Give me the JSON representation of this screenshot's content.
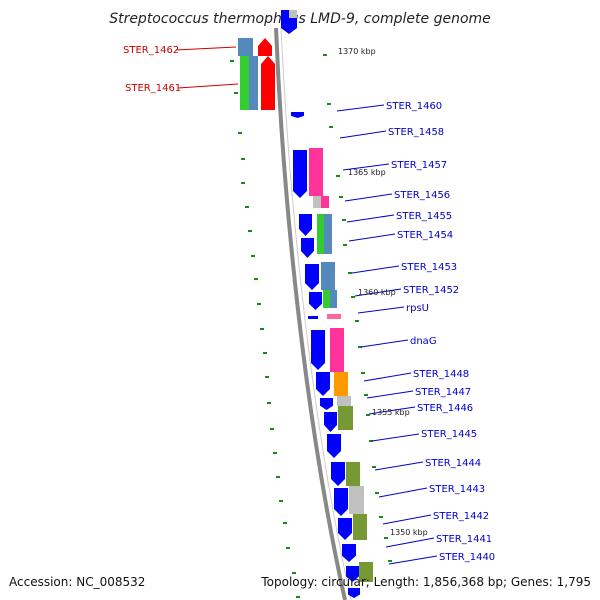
{
  "title": "Streptococcus thermophilus LMD-9, complete genome",
  "accession": "Accession: NC_008532",
  "summary": "Topology: circular; Length: 1,856,368 bp; Genes: 1,795",
  "colors": {
    "cds": "#0000ff",
    "label_blue": "#0000cc",
    "label_red": "#cc0000",
    "backbone": "#888888",
    "tick": "#1a8a1a",
    "cog_steelblue": "#5588bb",
    "cog_green": "#33cc33",
    "cog_red": "#ff0000",
    "cog_pink": "#ff3399",
    "cog_orange": "#ff9900",
    "cog_olive": "#779933",
    "cog_gray": "#c0c0c0"
  },
  "scale_labels": [
    "1370 kbp",
    "1365 kbp",
    "1360 kbp",
    "1355 kbp",
    "1350 kbp"
  ],
  "genes_left": [
    "STER_1462",
    "STER_1461"
  ],
  "genes_right": [
    "STER_1460",
    "STER_1458",
    "STER_1457",
    "STER_1456",
    "STER_1455",
    "STER_1454",
    "STER_1453",
    "STER_1452",
    "rpsU",
    "dnaG",
    "STER_1448",
    "STER_1447",
    "STER_1446",
    "STER_1445",
    "STER_1444",
    "STER_1443",
    "STER_1442",
    "STER_1441",
    "STER_1440"
  ]
}
